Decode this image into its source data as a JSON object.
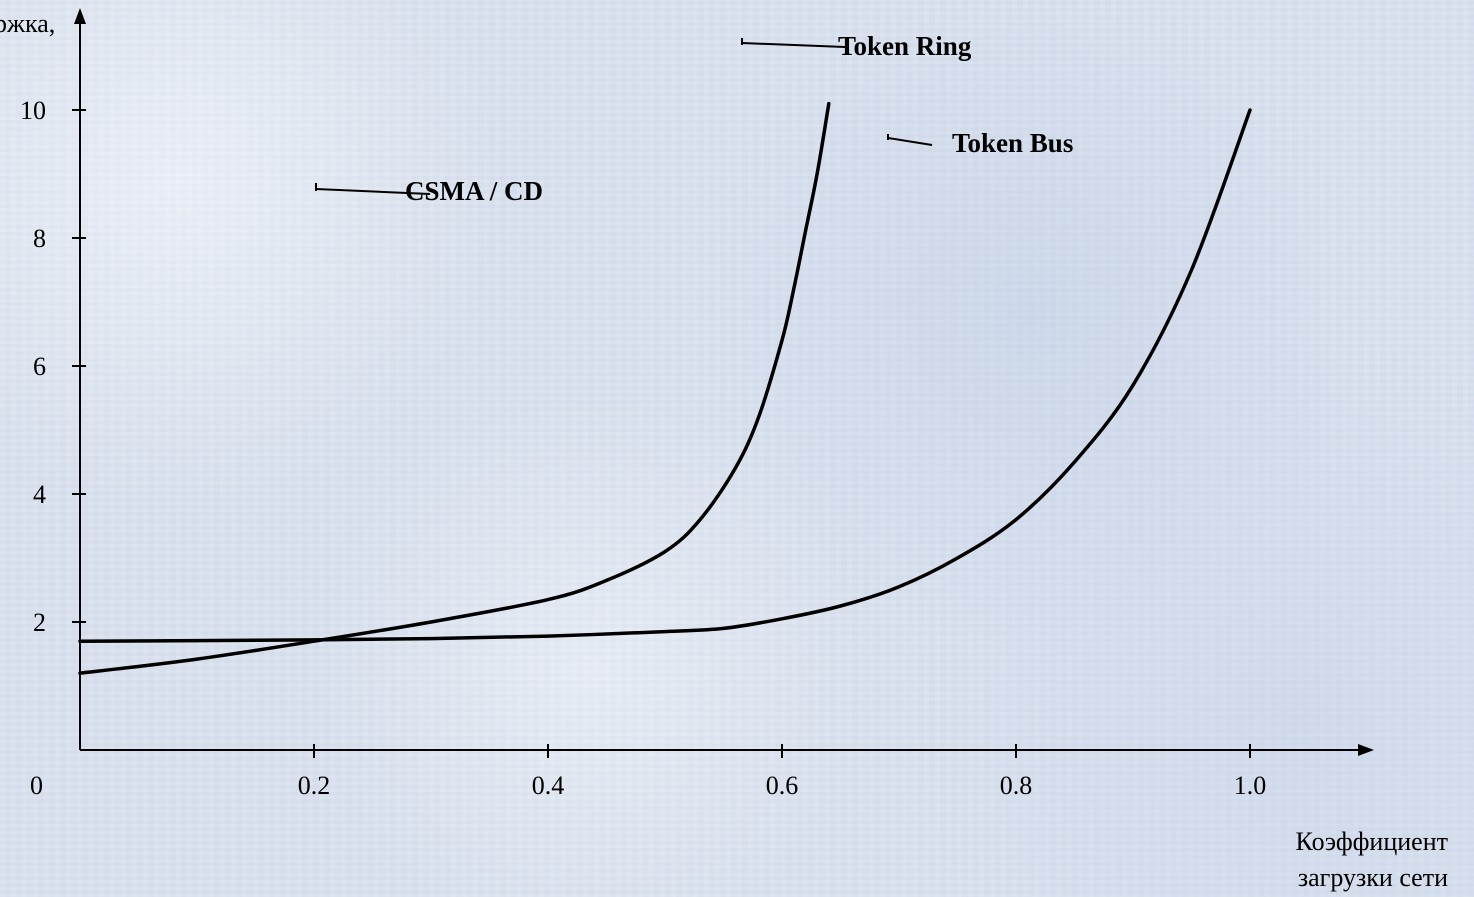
{
  "chart_data": {
    "type": "line",
    "xlabel": [
      "Коэффициент",
      "загрузки сети"
    ],
    "ylabel": "ржка,",
    "xlim": [
      0,
      1.1
    ],
    "ylim": [
      0,
      11
    ],
    "x_ticks": [
      "0.2",
      "0.4",
      "0.6",
      "0.8",
      "1.0"
    ],
    "x_tick_values": [
      0.2,
      0.4,
      0.6,
      0.8,
      1.0
    ],
    "y_ticks": [
      "2",
      "4",
      "6",
      "8",
      "10"
    ],
    "y_tick_values": [
      2,
      4,
      6,
      8,
      10
    ],
    "origin_label": "0",
    "grid": false,
    "series": [
      {
        "name": "CSMA / CD",
        "line_color": "#000000",
        "x": [
          0.0,
          0.1,
          0.2,
          0.3,
          0.4,
          0.45,
          0.5,
          0.53,
          0.56,
          0.58,
          0.6,
          0.61,
          0.62,
          0.63,
          0.64
        ],
        "y": [
          1.2,
          1.42,
          1.7,
          2.0,
          2.35,
          2.65,
          3.1,
          3.6,
          4.4,
          5.2,
          6.4,
          7.2,
          8.1,
          9.0,
          10.1
        ]
      },
      {
        "name": "Token Bus",
        "line_color": "#000000",
        "x": [
          0.0,
          0.1,
          0.2,
          0.3,
          0.4,
          0.5,
          0.55,
          0.6,
          0.65,
          0.7,
          0.75,
          0.8,
          0.85,
          0.9,
          0.95,
          1.0
        ],
        "y": [
          1.7,
          1.71,
          1.72,
          1.74,
          1.78,
          1.85,
          1.9,
          2.05,
          2.25,
          2.55,
          3.0,
          3.6,
          4.5,
          5.7,
          7.5,
          10.0
        ]
      }
    ],
    "annotations": [
      {
        "text": "Token Ring"
      },
      {
        "text": "Token Bus"
      },
      {
        "text": "CSMA / CD"
      }
    ]
  }
}
